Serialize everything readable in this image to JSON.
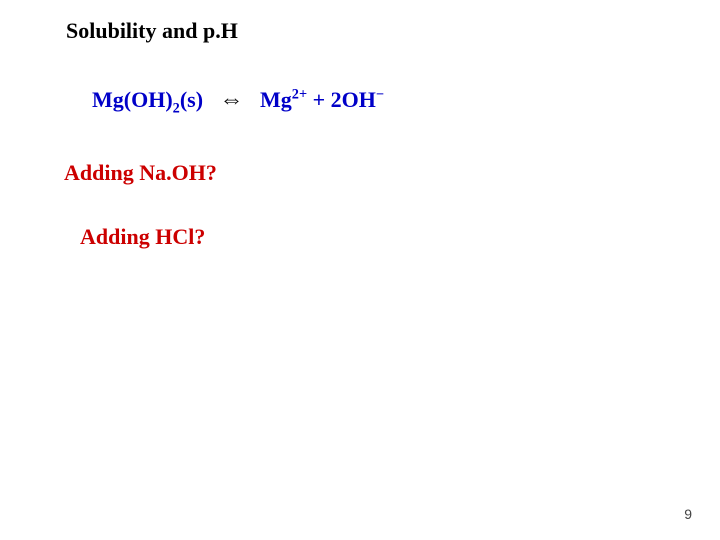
{
  "title": "Solubility and p.H",
  "equation": {
    "lhs_compound": "Mg(OH)",
    "lhs_sub": "2",
    "lhs_state": "(s)",
    "arrow": "⇔",
    "rhs_ion1": "Mg",
    "rhs_ion1_sup": "2+",
    "rhs_plus": "  +  ",
    "rhs_ion2_coeff": "2",
    "rhs_ion2": "OH",
    "rhs_ion2_sup": "−"
  },
  "question1": "Adding Na.OH?",
  "question2": "Adding HCl?",
  "pagenum": "9",
  "colors": {
    "text": "#000000",
    "blue": "#0000c8",
    "red": "#cc0000",
    "background": "#ffffff"
  },
  "fontsize_title": 22,
  "fontsize_body": 22,
  "fontsize_pagenum": 14
}
